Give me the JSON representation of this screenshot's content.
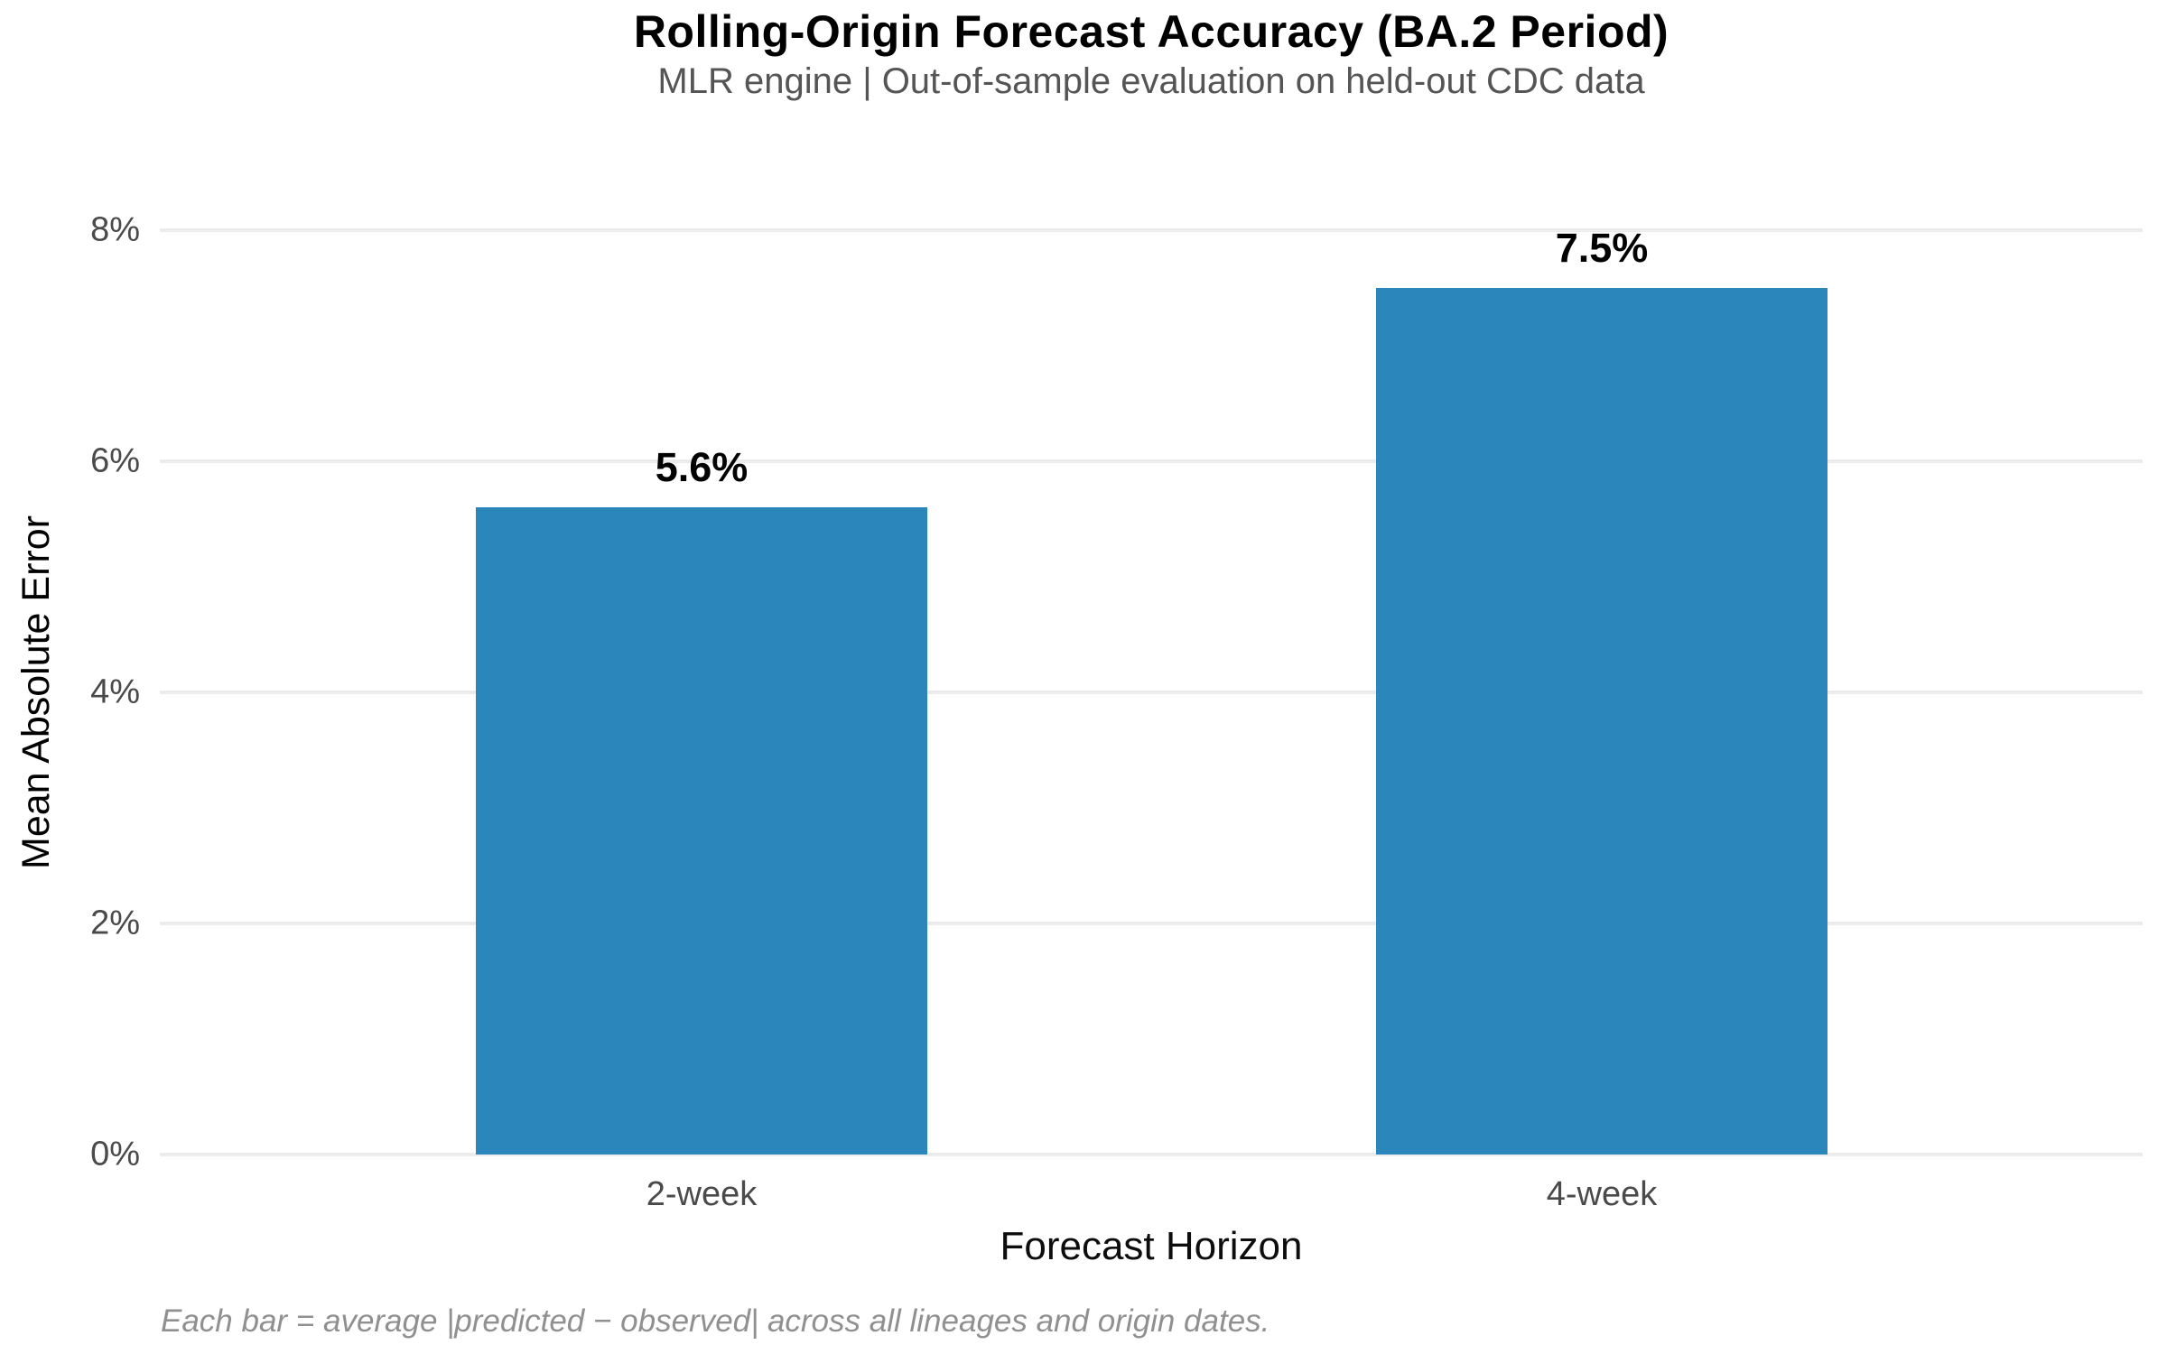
{
  "chart_data": {
    "type": "bar",
    "title": "Rolling-Origin Forecast Accuracy (BA.2 Period)",
    "subtitle": "MLR engine | Out-of-sample evaluation on held-out CDC data",
    "xlabel": "Forecast Horizon",
    "ylabel": "Mean Absolute Error",
    "caption": "Each bar = average |predicted − observed| across all lineages and origin dates.",
    "categories": [
      "2-week",
      "4-week"
    ],
    "values": [
      5.6,
      7.5
    ],
    "bar_labels": [
      "5.6%",
      "7.5%"
    ],
    "ylim": [
      0,
      8
    ],
    "yticks": [
      {
        "value": 0,
        "label": "0%"
      },
      {
        "value": 2,
        "label": "2%"
      },
      {
        "value": 4,
        "label": "4%"
      },
      {
        "value": 6,
        "label": "6%"
      },
      {
        "value": 8,
        "label": "8%"
      }
    ],
    "grid": true,
    "legend": "none",
    "bar_color": "#2b86bb",
    "colors": {
      "background": "#ffffff",
      "gridline": "#ebebeb",
      "tick_text": "#4a4a4a",
      "subtitle_text": "#555555",
      "caption_text": "#909090"
    }
  }
}
